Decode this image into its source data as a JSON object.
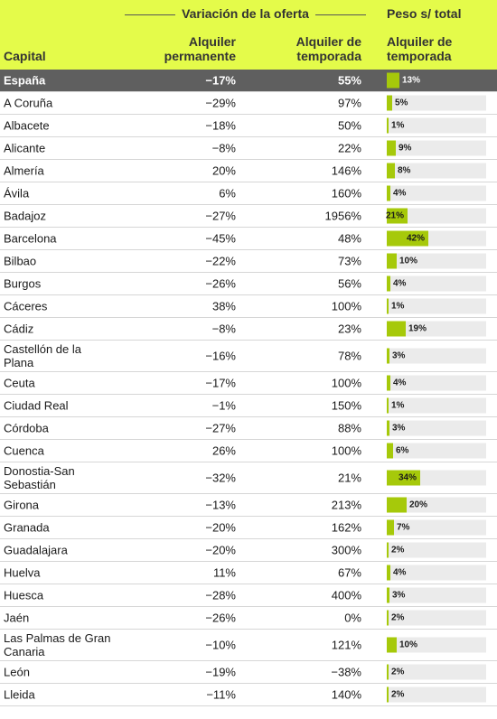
{
  "header": {
    "group_title": "Variación de la oferta",
    "peso_title": "Peso s/ total",
    "col_capital": "Capital",
    "col_perm_line1": "Alquiler",
    "col_perm_line2": "permanente",
    "col_temp_line1": "Alquiler de",
    "col_temp_line2": "temporada",
    "col_peso_line1": "Alquiler de",
    "col_peso_line2": "temporada"
  },
  "colors": {
    "header_bg": "#e4fb4a",
    "bar": "#a6c90a",
    "bar_track": "#ebebeb",
    "total_row_bg": "#5f5f5f"
  },
  "chart_data": {
    "type": "table",
    "columns": [
      "Capital",
      "Alquiler permanente",
      "Alquiler de temporada",
      "Alquiler de temporada (peso s/ total)"
    ],
    "bar_max_percent": 100,
    "rows": [
      {
        "city": "España",
        "perm": "−17%",
        "temp": "55%",
        "peso": 13,
        "peso_label": "13%",
        "total": true
      },
      {
        "city": "A Coruña",
        "perm": "−29%",
        "temp": "97%",
        "peso": 5,
        "peso_label": "5%"
      },
      {
        "city": "Albacete",
        "perm": "−18%",
        "temp": "50%",
        "peso": 1,
        "peso_label": "1%"
      },
      {
        "city": "Alicante",
        "perm": "−8%",
        "temp": "22%",
        "peso": 9,
        "peso_label": "9%"
      },
      {
        "city": "Almería",
        "perm": "20%",
        "temp": "146%",
        "peso": 8,
        "peso_label": "8%"
      },
      {
        "city": "Ávila",
        "perm": "6%",
        "temp": "160%",
        "peso": 4,
        "peso_label": "4%"
      },
      {
        "city": "Badajoz",
        "perm": "−27%",
        "temp": "1956%",
        "peso": 21,
        "peso_label": "21%"
      },
      {
        "city": "Barcelona",
        "perm": "−45%",
        "temp": "48%",
        "peso": 42,
        "peso_label": "42%"
      },
      {
        "city": "Bilbao",
        "perm": "−22%",
        "temp": "73%",
        "peso": 10,
        "peso_label": "10%"
      },
      {
        "city": "Burgos",
        "perm": "−26%",
        "temp": "56%",
        "peso": 4,
        "peso_label": "4%"
      },
      {
        "city": "Cáceres",
        "perm": "38%",
        "temp": "100%",
        "peso": 1,
        "peso_label": "1%"
      },
      {
        "city": "Cádiz",
        "perm": "−8%",
        "temp": "23%",
        "peso": 19,
        "peso_label": "19%"
      },
      {
        "city": "Castellón de la Plana",
        "perm": "−16%",
        "temp": "78%",
        "peso": 3,
        "peso_label": "3%"
      },
      {
        "city": "Ceuta",
        "perm": "−17%",
        "temp": "100%",
        "peso": 4,
        "peso_label": "4%"
      },
      {
        "city": "Ciudad Real",
        "perm": "−1%",
        "temp": "150%",
        "peso": 1,
        "peso_label": "1%"
      },
      {
        "city": "Córdoba",
        "perm": "−27%",
        "temp": "88%",
        "peso": 3,
        "peso_label": "3%"
      },
      {
        "city": "Cuenca",
        "perm": "26%",
        "temp": "100%",
        "peso": 6,
        "peso_label": "6%"
      },
      {
        "city": "Donostia-San Sebastián",
        "perm": "−32%",
        "temp": "21%",
        "peso": 34,
        "peso_label": "34%"
      },
      {
        "city": "Girona",
        "perm": "−13%",
        "temp": "213%",
        "peso": 20,
        "peso_label": "20%"
      },
      {
        "city": "Granada",
        "perm": "−20%",
        "temp": "162%",
        "peso": 7,
        "peso_label": "7%"
      },
      {
        "city": "Guadalajara",
        "perm": "−20%",
        "temp": "300%",
        "peso": 2,
        "peso_label": "2%"
      },
      {
        "city": "Huelva",
        "perm": "11%",
        "temp": "67%",
        "peso": 4,
        "peso_label": "4%"
      },
      {
        "city": "Huesca",
        "perm": "−28%",
        "temp": "400%",
        "peso": 3,
        "peso_label": "3%"
      },
      {
        "city": "Jaén",
        "perm": "−26%",
        "temp": "0%",
        "peso": 2,
        "peso_label": "2%"
      },
      {
        "city": "Las Palmas de Gran Canaria",
        "perm": "−10%",
        "temp": "121%",
        "peso": 10,
        "peso_label": "10%"
      },
      {
        "city": "León",
        "perm": "−19%",
        "temp": "−38%",
        "peso": 2,
        "peso_label": "2%"
      },
      {
        "city": "Lleida",
        "perm": "−11%",
        "temp": "140%",
        "peso": 2,
        "peso_label": "2%"
      }
    ]
  }
}
